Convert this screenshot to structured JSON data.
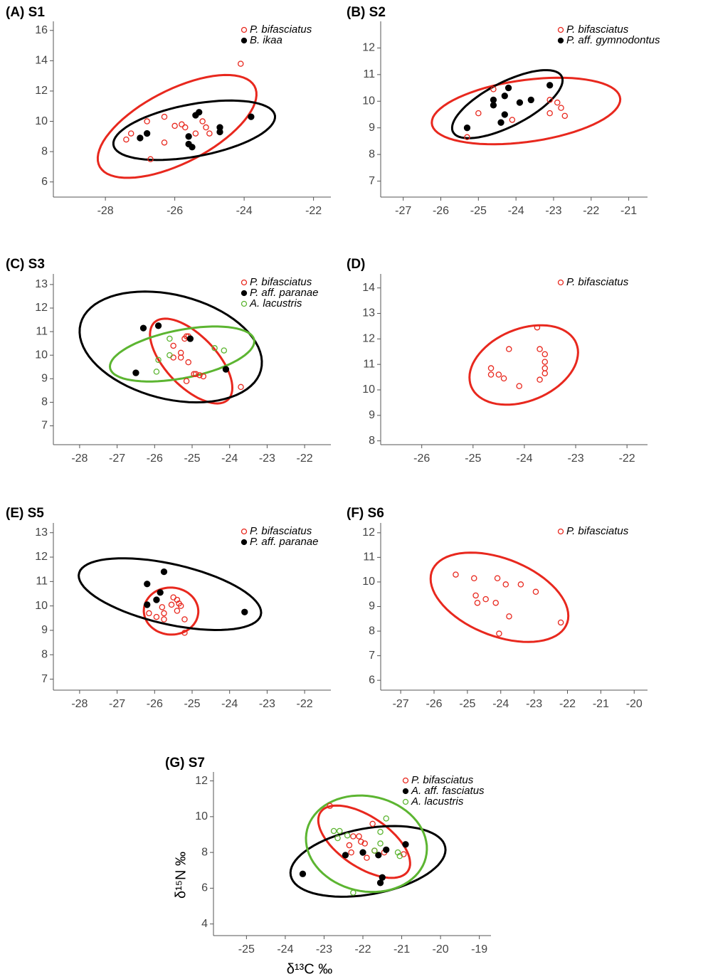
{
  "chart_data": [
    {
      "type": "scatter",
      "title": "(A) S1",
      "legend": "top-right",
      "xlim": [
        -29.5,
        -21.5
      ],
      "ylim": [
        5,
        16.6
      ],
      "xticks": [
        -28,
        -26,
        -24,
        -22
      ],
      "yticks": [
        6,
        8,
        10,
        12,
        14,
        16
      ],
      "series": [
        {
          "name": "P. bifasciatus",
          "color": "#e8281e",
          "marker": "open",
          "x": [
            -27.4,
            -27.26,
            -26.8,
            -26.7,
            -26.3,
            -26.3,
            -26.0,
            -25.8,
            -25.7,
            -25.4,
            -25.2,
            -25.1,
            -25.0,
            -24.1
          ],
          "y": [
            8.8,
            9.2,
            10.0,
            7.5,
            8.6,
            10.3,
            9.7,
            9.8,
            9.6,
            9.2,
            10.0,
            9.6,
            9.2,
            13.8
          ]
        },
        {
          "name": "B. ikaa",
          "color": "#000000",
          "marker": "filled",
          "x": [
            -27.0,
            -26.8,
            -25.6,
            -25.6,
            -25.5,
            -25.4,
            -25.3,
            -24.7,
            -24.7,
            -23.8
          ],
          "y": [
            8.9,
            9.2,
            9.0,
            8.5,
            8.3,
            10.4,
            10.6,
            9.6,
            9.3,
            10.3
          ]
        }
      ]
    },
    {
      "type": "scatter",
      "title": "(B) S2",
      "legend": "top-right",
      "xlim": [
        -27.6,
        -20.5
      ],
      "ylim": [
        6.4,
        13
      ],
      "xticks": [
        -27,
        -26,
        -25,
        -24,
        -23,
        -22,
        -21
      ],
      "yticks": [
        7,
        8,
        9,
        10,
        11,
        12
      ],
      "series": [
        {
          "name": "P. bifasciatus",
          "color": "#e8281e",
          "marker": "open",
          "x": [
            -25.3,
            -25.0,
            -24.6,
            -24.1,
            -23.1,
            -23.1,
            -22.9,
            -22.8,
            -22.7
          ],
          "y": [
            8.65,
            9.55,
            10.45,
            9.3,
            10.05,
            9.55,
            9.95,
            9.75,
            9.45
          ]
        },
        {
          "name": "P. aff. gymnodontus",
          "color": "#000000",
          "marker": "filled",
          "x": [
            -25.3,
            -24.6,
            -24.6,
            -24.4,
            -24.3,
            -24.3,
            -24.2,
            -23.9,
            -23.6,
            -23.1
          ],
          "y": [
            9.0,
            9.85,
            10.05,
            9.2,
            9.5,
            10.2,
            10.5,
            9.95,
            10.05,
            10.6
          ]
        }
      ]
    },
    {
      "type": "scatter",
      "title": "(C) S3",
      "legend": "top-right",
      "xlim": [
        -28.7,
        -21.3
      ],
      "ylim": [
        6.2,
        13.45
      ],
      "xticks": [
        -28,
        -27,
        -26,
        -25,
        -24,
        -23,
        -22
      ],
      "yticks": [
        7,
        8,
        9,
        10,
        11,
        12,
        13
      ],
      "series": [
        {
          "name": "P. bifasciatus",
          "color": "#e8281e",
          "marker": "open",
          "x": [
            -25.5,
            -25.5,
            -25.3,
            -25.3,
            -25.2,
            -25.15,
            -25.1,
            -25.1,
            -25.15,
            -24.9,
            -24.95,
            -24.8,
            -24.7,
            -23.7
          ],
          "y": [
            10.4,
            9.9,
            9.9,
            10.1,
            10.7,
            10.8,
            10.8,
            9.7,
            8.9,
            9.2,
            9.2,
            9.15,
            9.1,
            8.65
          ]
        },
        {
          "name": "P. aff. paranae",
          "color": "#000000",
          "marker": "filled",
          "x": [
            -26.3,
            -26.5,
            -25.9,
            -25.05,
            -24.1
          ],
          "y": [
            11.15,
            9.25,
            11.25,
            10.7,
            9.4
          ]
        },
        {
          "name": "A. lacustris",
          "color": "#5cb531",
          "marker": "open",
          "x": [
            -25.6,
            -25.6,
            -25.9,
            -25.95,
            -24.4,
            -24.15
          ],
          "y": [
            10.7,
            10.0,
            9.8,
            9.3,
            10.3,
            10.2
          ]
        }
      ]
    },
    {
      "type": "scatter",
      "title": "(D)",
      "legend": "top-right",
      "xlim": [
        -26.8,
        -21.6
      ],
      "ylim": [
        7.85,
        14.55
      ],
      "xticks": [
        -26,
        -25,
        -24,
        -23,
        -22
      ],
      "yticks": [
        8,
        9,
        10,
        11,
        12,
        13,
        14
      ],
      "series": [
        {
          "name": "P. bifasciatus",
          "color": "#e8281e",
          "marker": "open",
          "x": [
            -24.65,
            -24.65,
            -24.5,
            -24.4,
            -24.3,
            -24.1,
            -23.75,
            -23.7,
            -23.7,
            -23.6,
            -23.6,
            -23.6,
            -23.6
          ],
          "y": [
            10.85,
            10.6,
            10.6,
            10.45,
            11.6,
            10.15,
            12.45,
            11.6,
            10.4,
            11.4,
            11.1,
            10.85,
            10.65
          ]
        }
      ]
    },
    {
      "type": "scatter",
      "title": "(E) S5",
      "legend": "top-right",
      "xlim": [
        -28.7,
        -21.3
      ],
      "ylim": [
        6.55,
        13.4
      ],
      "xticks": [
        -28,
        -27,
        -26,
        -25,
        -24,
        -23,
        -22
      ],
      "yticks": [
        7,
        8,
        9,
        10,
        11,
        12,
        13
      ],
      "series": [
        {
          "name": "P. bifasciatus",
          "color": "#e8281e",
          "marker": "open",
          "x": [
            -26.15,
            -25.95,
            -25.8,
            -25.75,
            -25.75,
            -25.55,
            -25.5,
            -25.4,
            -25.35,
            -25.3,
            -25.4,
            -25.2,
            -25.2
          ],
          "y": [
            9.7,
            9.55,
            9.95,
            9.7,
            9.45,
            10.05,
            10.35,
            10.25,
            10.1,
            10.0,
            9.8,
            9.45,
            8.9
          ]
        },
        {
          "name": "P. aff. paranae",
          "color": "#000000",
          "marker": "filled",
          "x": [
            -26.2,
            -26.2,
            -25.95,
            -25.85,
            -25.75,
            -23.6
          ],
          "y": [
            10.9,
            10.05,
            10.25,
            10.55,
            11.4,
            9.75
          ]
        }
      ]
    },
    {
      "type": "scatter",
      "title": "(F) S6",
      "legend": "top-right",
      "xlim": [
        -27.6,
        -19.6
      ],
      "ylim": [
        5.6,
        12.4
      ],
      "xticks": [
        -27,
        -26,
        -25,
        -24,
        -23,
        -22,
        -21,
        -20
      ],
      "yticks": [
        6,
        7,
        8,
        9,
        10,
        11,
        12
      ],
      "series": [
        {
          "name": "P. bifasciatus",
          "color": "#e8281e",
          "marker": "open",
          "x": [
            -25.35,
            -24.8,
            -24.75,
            -24.7,
            -24.45,
            -24.1,
            -24.15,
            -23.85,
            -23.4,
            -23.75,
            -24.05,
            -22.95,
            -22.2
          ],
          "y": [
            10.3,
            10.15,
            9.45,
            9.15,
            9.3,
            10.15,
            9.15,
            9.9,
            9.9,
            8.6,
            7.9,
            9.6,
            8.35
          ]
        }
      ]
    },
    {
      "type": "scatter",
      "title": "(G) S7",
      "legend": "top-center",
      "x_label": "δ¹³C ‰",
      "y_label": "δ¹⁵N ‰",
      "xlim": [
        -25.85,
        -18.7
      ],
      "ylim": [
        3.35,
        12.5
      ],
      "xticks": [
        -25,
        -24,
        -23,
        -22,
        -21,
        -20,
        -19
      ],
      "yticks": [
        4,
        6,
        8,
        10,
        12
      ],
      "series": [
        {
          "name": "P. bifasciatus",
          "color": "#e8281e",
          "marker": "open",
          "x": [
            -22.85,
            -22.35,
            -22.25,
            -22.1,
            -22.05,
            -21.95,
            -21.9,
            -21.75,
            -21.7,
            -21.45,
            -20.95,
            -22.3
          ],
          "y": [
            10.6,
            8.4,
            8.9,
            8.9,
            8.6,
            8.5,
            7.7,
            9.6,
            8.1,
            8.0,
            7.9,
            8.0
          ]
        },
        {
          "name": "A. aff. fasciatus",
          "color": "#000000",
          "marker": "filled",
          "x": [
            -23.55,
            -22.45,
            -22.0,
            -21.6,
            -21.4,
            -21.5,
            -21.55,
            -20.9
          ],
          "y": [
            6.8,
            7.85,
            8.0,
            7.85,
            8.15,
            6.6,
            6.3,
            8.45
          ]
        },
        {
          "name": "A. lacustris",
          "color": "#5cb531",
          "marker": "open",
          "x": [
            -22.75,
            -22.6,
            -22.65,
            -22.4,
            -22.25,
            -21.7,
            -21.55,
            -21.55,
            -21.4,
            -21.1,
            -21.05
          ],
          "y": [
            9.2,
            9.2,
            8.8,
            8.95,
            5.75,
            8.1,
            8.5,
            9.15,
            9.9,
            8.0,
            7.8
          ]
        }
      ]
    }
  ]
}
